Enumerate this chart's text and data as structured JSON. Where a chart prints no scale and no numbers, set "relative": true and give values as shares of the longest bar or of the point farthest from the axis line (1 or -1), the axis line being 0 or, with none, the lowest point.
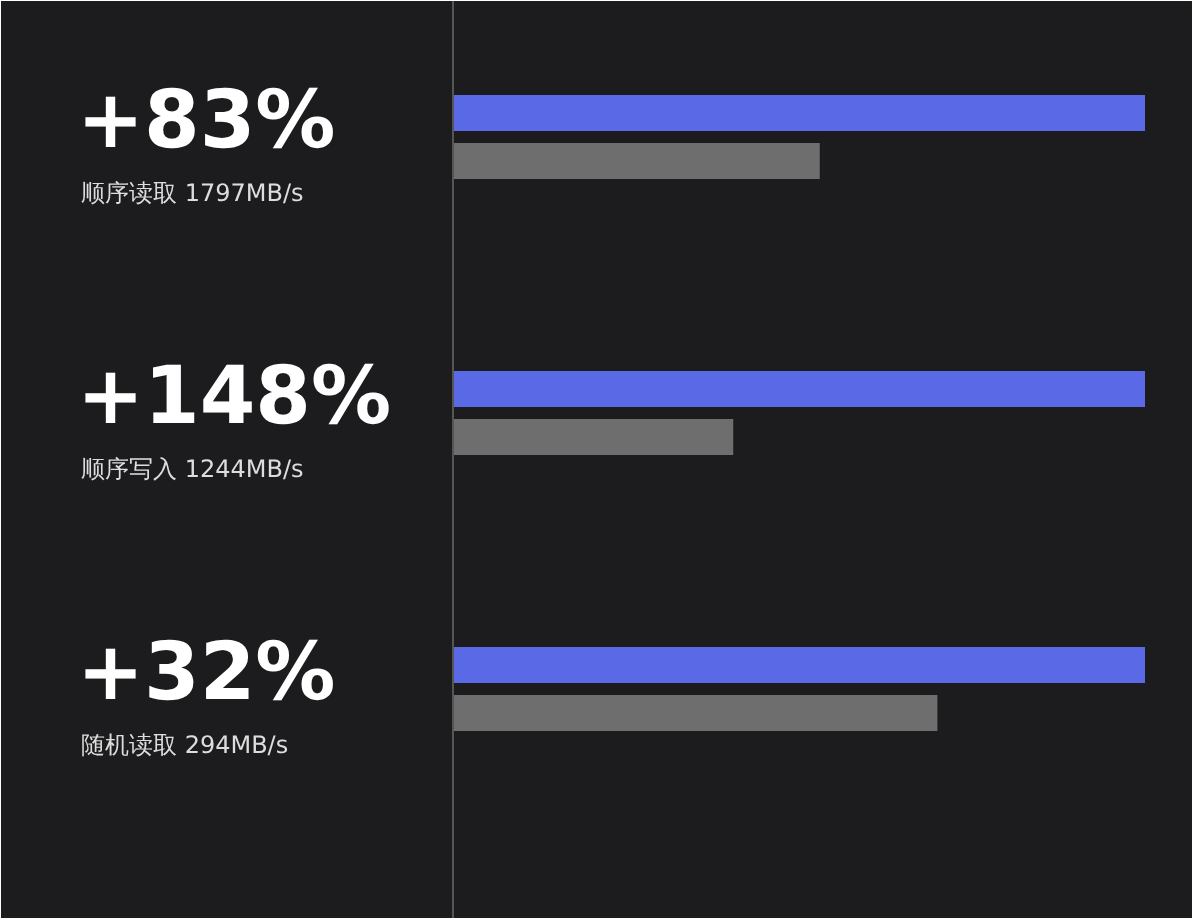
{
  "chart_data": {
    "type": "bar",
    "orientation": "horizontal",
    "relative": true,
    "categories": [
      "顺序读取 1797MB/s",
      "顺序写入 1244MB/s",
      "随机读取 294MB/s"
    ],
    "annotations": [
      "+83%",
      "+148%",
      "+32%"
    ],
    "series": [
      {
        "color": "#5a6ae6",
        "values": [
          1,
          1,
          1
        ]
      },
      {
        "color": "#6e6e6e",
        "values": [
          0.53,
          0.405,
          0.7
        ]
      }
    ],
    "grid": false
  }
}
